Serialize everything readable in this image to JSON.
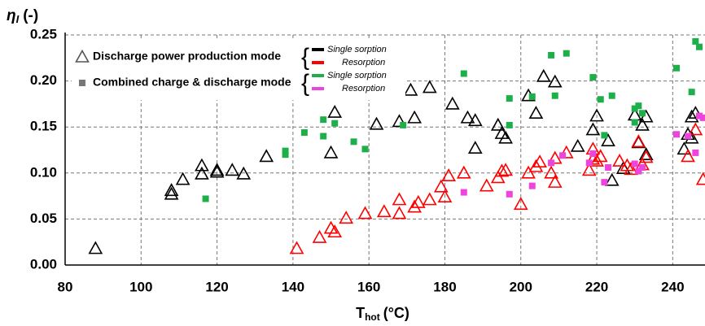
{
  "chart_data": {
    "type": "scatter",
    "y_label": {
      "symbol": "η",
      "subscript": "I",
      "unit": "(-)"
    },
    "x_label": {
      "symbol": "T",
      "subscript": "hot",
      "unit": "(°C)"
    },
    "xlim": [
      80,
      248.5
    ],
    "ylim": [
      0,
      0.25
    ],
    "xticks": [
      80,
      100,
      120,
      140,
      160,
      180,
      200,
      220,
      240
    ],
    "yticks": [
      {
        "value": 0,
        "label": "0.00"
      },
      {
        "value": 0.05,
        "label": "0.05"
      },
      {
        "value": 0.1,
        "label": "0.10"
      },
      {
        "value": 0.15,
        "label": "0.15"
      },
      {
        "value": 0.2,
        "label": "0.20"
      },
      {
        "value": 0.25,
        "label": "0.25"
      }
    ],
    "grid": true,
    "groups": [
      {
        "name": "Discharge power production mode",
        "marker": "triangle",
        "series": [
          {
            "name": "Single sorption",
            "color": "#000000",
            "x": [
              88,
              108,
              108,
              111,
              116,
              116,
              120,
              120,
              124,
              127,
              133,
              150,
              151,
              162,
              168,
              171,
              172,
              176,
              182,
              186,
              188,
              188,
              194,
              195,
              196,
              202,
              204,
              206,
              209,
              215,
              219,
              220,
              223,
              224,
              227,
              230,
              231,
              232,
              233,
              233,
              243,
              244,
              245,
              245,
              246
            ],
            "y": [
              0.018,
              0.077,
              0.081,
              0.093,
              0.099,
              0.108,
              0.101,
              0.103,
              0.103,
              0.099,
              0.118,
              0.122,
              0.166,
              0.153,
              0.156,
              0.19,
              0.16,
              0.193,
              0.175,
              0.16,
              0.157,
              0.127,
              0.152,
              0.143,
              0.138,
              0.184,
              0.165,
              0.205,
              0.199,
              0.129,
              0.147,
              0.162,
              0.135,
              0.092,
              0.105,
              0.163,
              0.133,
              0.152,
              0.161,
              0.12,
              0.126,
              0.142,
              0.138,
              0.161,
              0.165
            ]
          },
          {
            "name": "Resorption",
            "color": "#ff0000",
            "x": [
              141,
              147,
              150,
              151,
              154,
              159,
              164,
              168,
              168,
              172,
              173,
              176,
              179,
              180,
              181,
              185,
              191,
              194,
              195,
              196,
              200,
              202,
              204,
              205,
              208,
              209,
              209,
              212,
              218,
              219,
              219,
              220,
              221,
              226,
              228,
              229,
              231,
              232,
              233,
              244,
              246,
              248
            ],
            "y": [
              0.018,
              0.03,
              0.04,
              0.036,
              0.051,
              0.056,
              0.058,
              0.056,
              0.071,
              0.063,
              0.068,
              0.071,
              0.085,
              0.074,
              0.097,
              0.1,
              0.086,
              0.095,
              0.102,
              0.103,
              0.066,
              0.1,
              0.107,
              0.112,
              0.1,
              0.09,
              0.116,
              0.122,
              0.103,
              0.115,
              0.126,
              0.113,
              0.118,
              0.113,
              0.108,
              0.104,
              0.134,
              0.109,
              0.117,
              0.118,
              0.147,
              0.093
            ]
          }
        ]
      },
      {
        "name": "Combined charge & discharge mode",
        "marker": "square",
        "series": [
          {
            "name": "Single sorption",
            "color": "#1db04a",
            "x": [
              117,
              138,
              138,
              143,
              148,
              148,
              151,
              156,
              159,
              169,
              185,
              197,
              197,
              203,
              208,
              209,
              212,
              219,
              221,
              222,
              224,
              230,
              230,
              231,
              232,
              241,
              245,
              246,
              247
            ],
            "y": [
              0.072,
              0.12,
              0.124,
              0.144,
              0.14,
              0.158,
              0.154,
              0.134,
              0.126,
              0.152,
              0.208,
              0.181,
              0.152,
              0.183,
              0.228,
              0.184,
              0.23,
              0.204,
              0.18,
              0.141,
              0.184,
              0.155,
              0.17,
              0.173,
              0.165,
              0.214,
              0.188,
              0.243,
              0.237
            ]
          },
          {
            "name": "Resorption",
            "color": "#ee44dd",
            "x": [
              185,
              197,
              203,
              208,
              211,
              218,
              219,
              222,
              223,
              230,
              231,
              232,
              241,
              244,
              246,
              247,
              248
            ],
            "y": [
              0.079,
              0.077,
              0.086,
              0.111,
              0.119,
              0.111,
              0.121,
              0.09,
              0.106,
              0.11,
              0.102,
              0.106,
              0.142,
              0.14,
              0.122,
              0.162,
              0.16
            ]
          }
        ]
      }
    ]
  }
}
